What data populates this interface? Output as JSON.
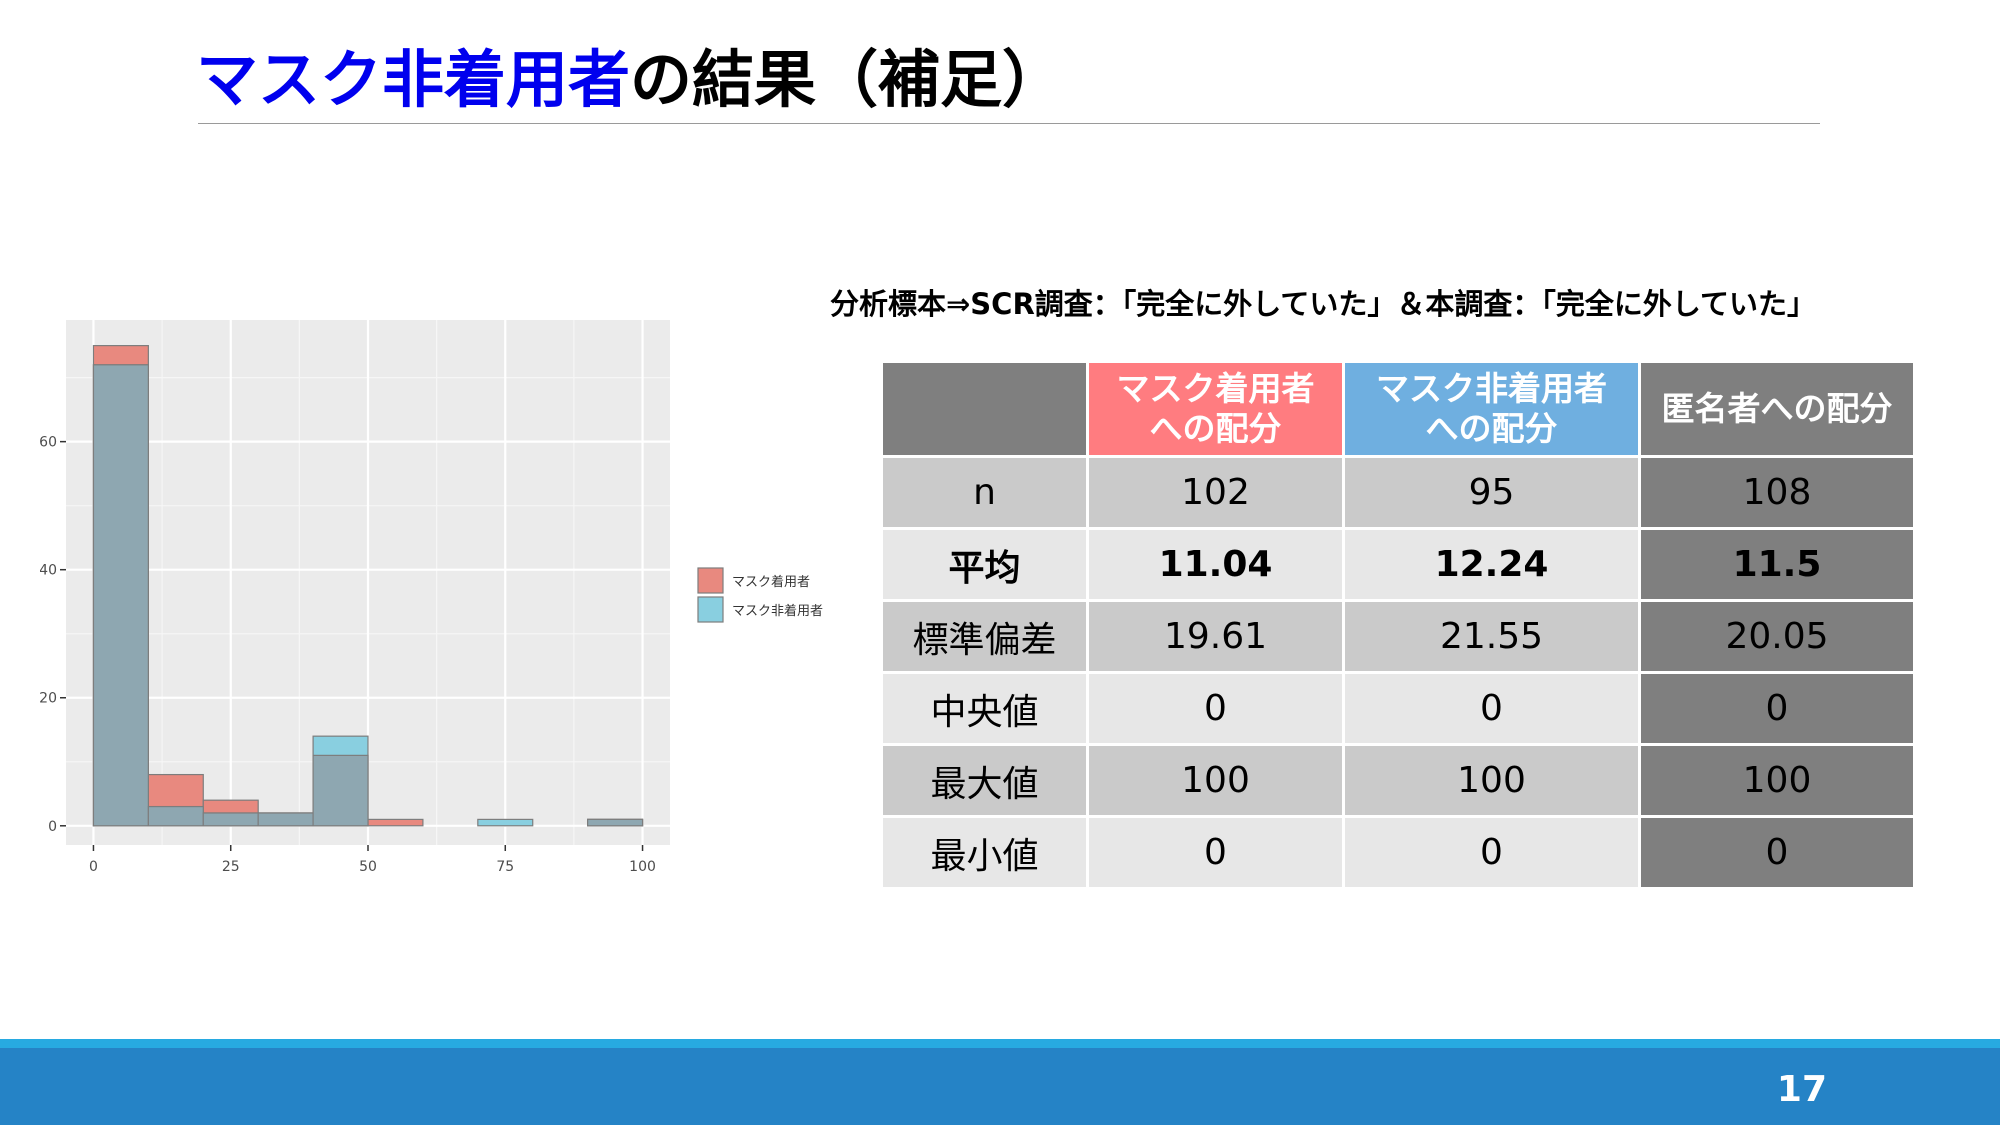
{
  "slide": {
    "title_accent": "マスク非着用者",
    "title_rest": "の結果（補足）",
    "page_number": "17"
  },
  "colors": {
    "title_accent": "#0000ee",
    "worn": "#ff7c80",
    "not_worn": "#6fafe0",
    "anonymous": "#7f7f7f",
    "footer": "#2583c6"
  },
  "chart_data": {
    "type": "bar",
    "histogram": true,
    "bin_width": 10,
    "bins": [
      [
        0,
        10
      ],
      [
        10,
        20
      ],
      [
        20,
        30
      ],
      [
        30,
        40
      ],
      [
        40,
        50
      ],
      [
        50,
        60
      ],
      [
        60,
        70
      ],
      [
        70,
        80
      ],
      [
        80,
        90
      ],
      [
        90,
        100
      ]
    ],
    "series": [
      {
        "name": "マスク着用者",
        "color": "#e8897f",
        "values": [
          75,
          8,
          4,
          2,
          11,
          1,
          0,
          0,
          0,
          1
        ]
      },
      {
        "name": "マスク非着用者",
        "color": "#89cfe0",
        "values": [
          72,
          3,
          2,
          2,
          14,
          0,
          0,
          1,
          0,
          1
        ]
      }
    ],
    "overlap_color": "#8ea7b1",
    "xlim": [
      -5,
      105
    ],
    "ylim": [
      -3,
      79
    ],
    "x_ticks": [
      0,
      25,
      50,
      75,
      100
    ],
    "y_ticks": [
      0,
      20,
      40,
      60
    ],
    "grid": true,
    "legend_position": "right",
    "title": "",
    "xlabel": "",
    "ylabel": ""
  },
  "table": {
    "caption": "分析標本⇒SCR調査：「完全に外していた」＆本調査：「完全に外していた」",
    "headers": [
      {
        "line1": "",
        "line2": ""
      },
      {
        "line1": "マスク着用者",
        "line2": "への配分"
      },
      {
        "line1": "マスク非着用者",
        "line2": "への配分"
      },
      {
        "line1": "匿名者への配分",
        "line2": ""
      }
    ],
    "rows": [
      {
        "label": "n",
        "values": [
          "102",
          "95",
          "108"
        ]
      },
      {
        "label": "平均",
        "values": [
          "11.04",
          "12.24",
          "11.5"
        ]
      },
      {
        "label": "標準偏差",
        "values": [
          "19.61",
          "21.55",
          "20.05"
        ]
      },
      {
        "label": "中央値",
        "values": [
          "0",
          "0",
          "0"
        ]
      },
      {
        "label": "最大値",
        "values": [
          "100",
          "100",
          "100"
        ]
      },
      {
        "label": "最小値",
        "values": [
          "0",
          "0",
          "0"
        ]
      }
    ]
  }
}
